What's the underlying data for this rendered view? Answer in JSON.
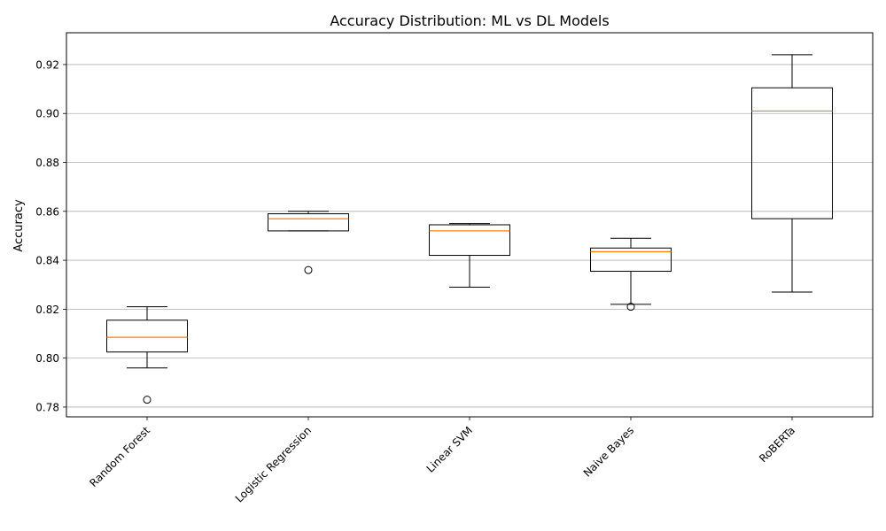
{
  "chart_data": {
    "type": "box",
    "title": "Accuracy Distribution: ML vs DL Models",
    "xlabel": "",
    "ylabel": "Accuracy",
    "ylim": [
      0.776,
      0.933
    ],
    "yticks": [
      0.78,
      0.8,
      0.82,
      0.84,
      0.86,
      0.88,
      0.9,
      0.92
    ],
    "ytick_labels": [
      "0.78",
      "0.80",
      "0.82",
      "0.84",
      "0.86",
      "0.88",
      "0.90",
      "0.92"
    ],
    "grid": "y",
    "categories": [
      "Random Forest",
      "Logistic Regression",
      "Linear SVM",
      "Naive Bayes",
      "RoBERTa"
    ],
    "boxes": [
      {
        "label": "Random Forest",
        "whisker_low": 0.796,
        "q1": 0.8025,
        "median": 0.8085,
        "q3": 0.8155,
        "whisker_high": 0.821,
        "outliers": [
          0.783
        ]
      },
      {
        "label": "Logistic Regression",
        "whisker_low": 0.852,
        "q1": 0.852,
        "median": 0.857,
        "q3": 0.859,
        "whisker_high": 0.86,
        "outliers": [
          0.836
        ]
      },
      {
        "label": "Linear SVM",
        "whisker_low": 0.829,
        "q1": 0.842,
        "median": 0.852,
        "q3": 0.8545,
        "whisker_high": 0.855,
        "outliers": []
      },
      {
        "label": "Naive Bayes",
        "whisker_low": 0.822,
        "q1": 0.8355,
        "median": 0.8435,
        "q3": 0.845,
        "whisker_high": 0.849,
        "outliers": [
          0.821
        ]
      },
      {
        "label": "RoBERTa",
        "whisker_low": 0.827,
        "q1": 0.857,
        "median": 0.901,
        "q3": 0.9105,
        "whisker_high": 0.924,
        "outliers": []
      }
    ],
    "colors": {
      "box": "#000000",
      "median": "#ff7f0e",
      "grid": "#b0b0b0"
    }
  }
}
